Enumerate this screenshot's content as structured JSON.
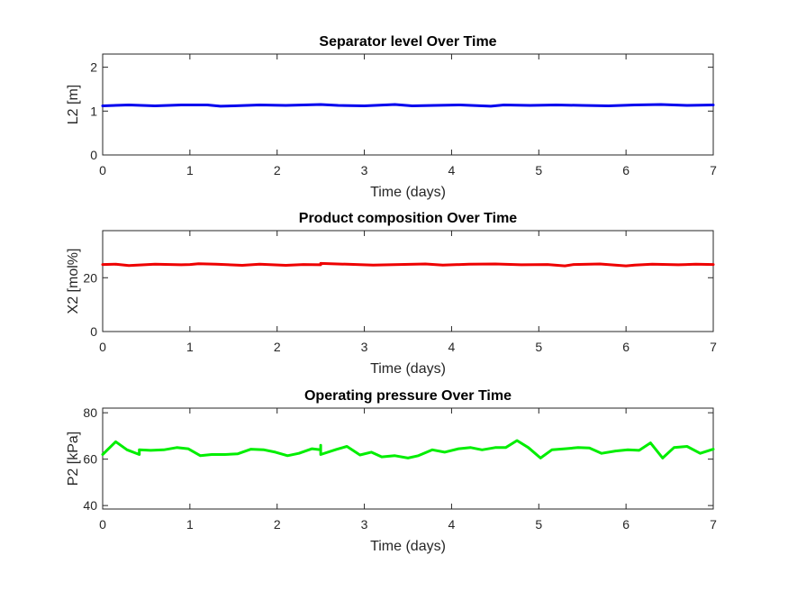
{
  "chart_data": [
    {
      "type": "line",
      "title": "Separator level Over Time",
      "xlabel": "Time (days)",
      "ylabel": "L2 [m]",
      "xlim": [
        0,
        7
      ],
      "ylim": [
        0,
        2.3
      ],
      "xticks": [
        0,
        1,
        2,
        3,
        4,
        5,
        6,
        7
      ],
      "yticks": [
        0,
        1,
        2
      ],
      "color": "#0000ee",
      "series": [
        {
          "name": "L2",
          "x": [
            0,
            0.3,
            0.6,
            0.9,
            1.2,
            1.35,
            1.5,
            1.8,
            2.1,
            2.5,
            2.7,
            3.0,
            3.35,
            3.55,
            3.8,
            4.1,
            4.45,
            4.6,
            4.9,
            5.2,
            5.5,
            5.8,
            6.1,
            6.4,
            6.7,
            7.0
          ],
          "y": [
            1.12,
            1.14,
            1.12,
            1.14,
            1.14,
            1.11,
            1.12,
            1.14,
            1.13,
            1.15,
            1.13,
            1.12,
            1.15,
            1.12,
            1.13,
            1.14,
            1.11,
            1.14,
            1.13,
            1.14,
            1.13,
            1.12,
            1.14,
            1.15,
            1.13,
            1.14
          ]
        }
      ]
    },
    {
      "type": "line",
      "title": "Product composition Over Time",
      "xlabel": "Time (days)",
      "ylabel": "X2 [mol%]",
      "xlim": [
        0,
        7
      ],
      "ylim": [
        0,
        37.5
      ],
      "xticks": [
        0,
        1,
        2,
        3,
        4,
        5,
        6,
        7
      ],
      "yticks": [
        0,
        20
      ],
      "color": "#ee0000",
      "series": [
        {
          "name": "X2",
          "x": [
            0,
            0.15,
            0.3,
            0.6,
            0.9,
            1.0,
            1.1,
            1.3,
            1.6,
            1.8,
            2.1,
            2.3,
            2.5,
            2.5,
            2.8,
            3.1,
            3.4,
            3.7,
            3.9,
            4.2,
            4.5,
            4.8,
            5.1,
            5.3,
            5.4,
            5.7,
            6.0,
            6.1,
            6.3,
            6.6,
            6.8,
            7.0
          ],
          "y": [
            24.9,
            25.0,
            24.5,
            25.0,
            24.8,
            24.9,
            25.2,
            25.0,
            24.6,
            25.0,
            24.6,
            24.9,
            24.8,
            25.3,
            25.0,
            24.7,
            24.9,
            25.1,
            24.7,
            25.0,
            25.1,
            24.8,
            24.9,
            24.4,
            24.9,
            25.1,
            24.4,
            24.7,
            25.0,
            24.8,
            25.0,
            24.9
          ]
        }
      ]
    },
    {
      "type": "line",
      "title": "Operating pressure Over Time",
      "xlabel": "Time (days)",
      "ylabel": "P2 [kPa]",
      "xlim": [
        0,
        7
      ],
      "ylim": [
        38.5,
        82
      ],
      "xticks": [
        0,
        1,
        2,
        3,
        4,
        5,
        6,
        7
      ],
      "yticks": [
        40,
        60,
        80
      ],
      "color": "#00ee00",
      "series": [
        {
          "name": "P2",
          "x": [
            0,
            0.15,
            0.28,
            0.42,
            0.42,
            0.55,
            0.7,
            0.85,
            0.98,
            1.12,
            1.25,
            1.4,
            1.55,
            1.7,
            1.85,
            1.98,
            2.12,
            2.25,
            2.4,
            2.5,
            2.5,
            2.5,
            2.68,
            2.8,
            2.95,
            3.08,
            3.2,
            3.35,
            3.5,
            3.62,
            3.78,
            3.92,
            4.08,
            4.22,
            4.35,
            4.5,
            4.62,
            4.75,
            4.88,
            5.02,
            5.15,
            5.3,
            5.45,
            5.58,
            5.72,
            5.88,
            6.02,
            6.15,
            6.28,
            6.42,
            6.55,
            6.7,
            6.85,
            7.0
          ],
          "y": [
            62,
            67.5,
            64,
            62,
            64,
            63.8,
            64,
            65,
            64.5,
            61.5,
            62,
            62,
            62.3,
            64.3,
            64,
            63,
            61.5,
            62.5,
            64.5,
            64,
            66,
            62,
            64.2,
            65.5,
            61.8,
            63,
            61,
            61.5,
            60.5,
            61.5,
            64,
            63,
            64.5,
            65,
            64,
            65,
            65,
            68,
            65,
            60.5,
            64,
            64.5,
            65,
            64.8,
            62.5,
            63.5,
            64,
            63.8,
            67,
            60.5,
            65,
            65.5,
            62.5,
            64.3
          ]
        }
      ]
    }
  ]
}
